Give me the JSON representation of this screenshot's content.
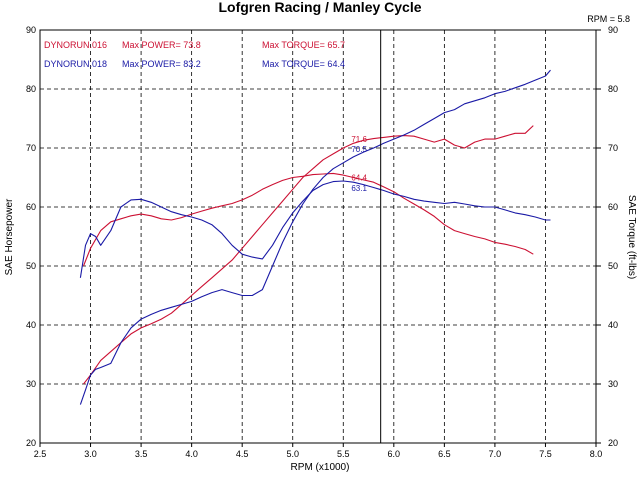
{
  "chart_data": {
    "type": "line",
    "title": "Lofgren Racing / Manley Cycle",
    "xlabel": "RPM (x1000)",
    "ylabel_left": "SAE Horsepower",
    "ylabel_right": "SAE Torque (ft-lbs)",
    "cursor_label": "RPM = 5.8",
    "cursor_x": 5.87,
    "xlim": [
      2.5,
      8.0
    ],
    "ylim": [
      20,
      90
    ],
    "xticks": [
      2.5,
      3.0,
      3.5,
      4.0,
      4.5,
      5.0,
      5.5,
      6.0,
      6.5,
      7.0,
      7.5,
      8.0
    ],
    "xtick_labels": [
      "2.5",
      "3.0",
      "3.5",
      "4.0",
      "4.5",
      "5.0",
      "5.5",
      "6.0",
      "6.5",
      "7.0",
      "7.5",
      "8.0"
    ],
    "yticks": [
      20,
      30,
      40,
      50,
      60,
      70,
      80,
      90
    ],
    "ytick_labels": [
      "20",
      "30",
      "40",
      "50",
      "60",
      "70",
      "80",
      "90"
    ],
    "grid": true,
    "legend": [
      {
        "run": "DYNORUN.016",
        "power": "Max POWER= 73.8",
        "torque": "Max TORQUE= 65.7",
        "color": "#cc1133"
      },
      {
        "run": "DYNORUN.018",
        "power": "Max POWER= 83.2",
        "torque": "Max TORQUE= 64.4",
        "color": "#1a1aa6"
      }
    ],
    "annotations": [
      {
        "text": "71.6",
        "x": 5.58,
        "y": 71.0,
        "color": "#cc1133"
      },
      {
        "text": "70.5",
        "x": 5.58,
        "y": 69.3,
        "color": "#1a1aa6"
      },
      {
        "text": "64.4",
        "x": 5.58,
        "y": 64.5,
        "color": "#cc1133"
      },
      {
        "text": "63.1",
        "x": 5.58,
        "y": 62.7,
        "color": "#1a1aa6"
      }
    ],
    "series": [
      {
        "name": "DYNORUN.016 Power",
        "color": "#cc1133",
        "x": [
          2.93,
          3.0,
          3.1,
          3.2,
          3.3,
          3.4,
          3.5,
          3.6,
          3.7,
          3.8,
          3.9,
          4.0,
          4.1,
          4.2,
          4.3,
          4.4,
          4.5,
          4.6,
          4.7,
          4.8,
          4.9,
          5.0,
          5.1,
          5.2,
          5.3,
          5.4,
          5.5,
          5.6,
          5.7,
          5.8,
          5.9,
          6.0,
          6.1,
          6.2,
          6.3,
          6.4,
          6.5,
          6.6,
          6.7,
          6.8,
          6.9,
          7.0,
          7.1,
          7.2,
          7.3,
          7.38
        ],
        "y": [
          30.0,
          31.5,
          34.0,
          35.5,
          37.0,
          38.5,
          39.5,
          40.2,
          41.0,
          42.0,
          43.5,
          45.0,
          46.5,
          48.0,
          49.5,
          51.0,
          53.0,
          55.0,
          57.0,
          59.0,
          61.0,
          63.0,
          65.0,
          66.5,
          68.0,
          69.0,
          70.0,
          70.8,
          71.3,
          71.6,
          71.8,
          72.0,
          72.1,
          72.0,
          71.5,
          71.0,
          71.5,
          70.5,
          70.0,
          71.0,
          71.5,
          71.5,
          72.0,
          72.5,
          72.5,
          73.8
        ]
      },
      {
        "name": "DYNORUN.016 Torque",
        "color": "#cc1133",
        "x": [
          2.93,
          3.0,
          3.1,
          3.2,
          3.3,
          3.4,
          3.5,
          3.6,
          3.7,
          3.8,
          3.9,
          4.0,
          4.1,
          4.2,
          4.3,
          4.4,
          4.5,
          4.6,
          4.7,
          4.8,
          4.9,
          5.0,
          5.1,
          5.2,
          5.3,
          5.4,
          5.5,
          5.6,
          5.7,
          5.8,
          5.9,
          6.0,
          6.1,
          6.2,
          6.3,
          6.4,
          6.5,
          6.6,
          6.7,
          6.8,
          6.9,
          7.0,
          7.1,
          7.2,
          7.3,
          7.38
        ],
        "y": [
          50.0,
          53.0,
          56.0,
          57.5,
          58.0,
          58.5,
          58.8,
          58.5,
          58.0,
          57.8,
          58.2,
          58.8,
          59.3,
          59.8,
          60.2,
          60.6,
          61.2,
          62.0,
          63.0,
          63.8,
          64.5,
          65.0,
          65.2,
          65.5,
          65.6,
          65.7,
          65.4,
          65.0,
          64.6,
          64.2,
          63.4,
          62.6,
          61.5,
          60.5,
          59.5,
          58.4,
          57.0,
          56.0,
          55.5,
          55.0,
          54.6,
          54.0,
          53.7,
          53.3,
          52.8,
          52.0
        ]
      },
      {
        "name": "DYNORUN.018 Power",
        "color": "#1a1aa6",
        "x": [
          2.9,
          2.95,
          3.0,
          3.05,
          3.1,
          3.2,
          3.3,
          3.4,
          3.5,
          3.6,
          3.7,
          3.8,
          3.9,
          4.0,
          4.1,
          4.2,
          4.3,
          4.4,
          4.5,
          4.6,
          4.7,
          4.8,
          4.9,
          5.0,
          5.1,
          5.2,
          5.3,
          5.4,
          5.5,
          5.6,
          5.7,
          5.8,
          5.9,
          6.0,
          6.1,
          6.2,
          6.3,
          6.4,
          6.5,
          6.6,
          6.7,
          6.8,
          6.9,
          7.0,
          7.1,
          7.2,
          7.3,
          7.4,
          7.5,
          7.55
        ],
        "y": [
          26.5,
          29.0,
          31.5,
          32.5,
          32.8,
          33.5,
          37.0,
          39.5,
          41.0,
          41.8,
          42.5,
          43.0,
          43.5,
          44.0,
          44.8,
          45.5,
          46.0,
          45.5,
          45.0,
          45.0,
          46.0,
          50.0,
          54.0,
          57.5,
          60.5,
          63.0,
          65.0,
          66.5,
          67.5,
          68.5,
          69.3,
          70.0,
          70.8,
          71.5,
          72.2,
          73.0,
          74.0,
          75.0,
          76.0,
          76.5,
          77.5,
          78.0,
          78.5,
          79.2,
          79.6,
          80.2,
          80.8,
          81.5,
          82.2,
          83.2
        ]
      },
      {
        "name": "DYNORUN.018 Torque",
        "color": "#1a1aa6",
        "x": [
          2.9,
          2.95,
          3.0,
          3.05,
          3.1,
          3.2,
          3.3,
          3.4,
          3.5,
          3.6,
          3.7,
          3.8,
          3.9,
          4.0,
          4.1,
          4.2,
          4.3,
          4.4,
          4.5,
          4.6,
          4.7,
          4.8,
          4.9,
          5.0,
          5.1,
          5.2,
          5.3,
          5.4,
          5.5,
          5.6,
          5.7,
          5.8,
          5.9,
          6.0,
          6.1,
          6.2,
          6.3,
          6.4,
          6.5,
          6.6,
          6.7,
          6.8,
          6.9,
          7.0,
          7.1,
          7.2,
          7.3,
          7.4,
          7.5,
          7.55
        ],
        "y": [
          48.0,
          53.5,
          55.5,
          55.0,
          53.5,
          56.0,
          60.0,
          61.2,
          61.3,
          60.8,
          60.0,
          59.2,
          58.7,
          58.3,
          57.8,
          57.0,
          55.5,
          53.5,
          52.0,
          51.5,
          51.2,
          53.5,
          56.5,
          59.0,
          61.0,
          62.8,
          63.8,
          64.3,
          64.4,
          64.2,
          63.8,
          63.3,
          62.8,
          62.2,
          61.8,
          61.3,
          61.0,
          60.8,
          60.6,
          60.8,
          60.5,
          60.2,
          60.0,
          60.0,
          59.5,
          59.0,
          58.7,
          58.3,
          57.8,
          57.8
        ]
      }
    ]
  }
}
